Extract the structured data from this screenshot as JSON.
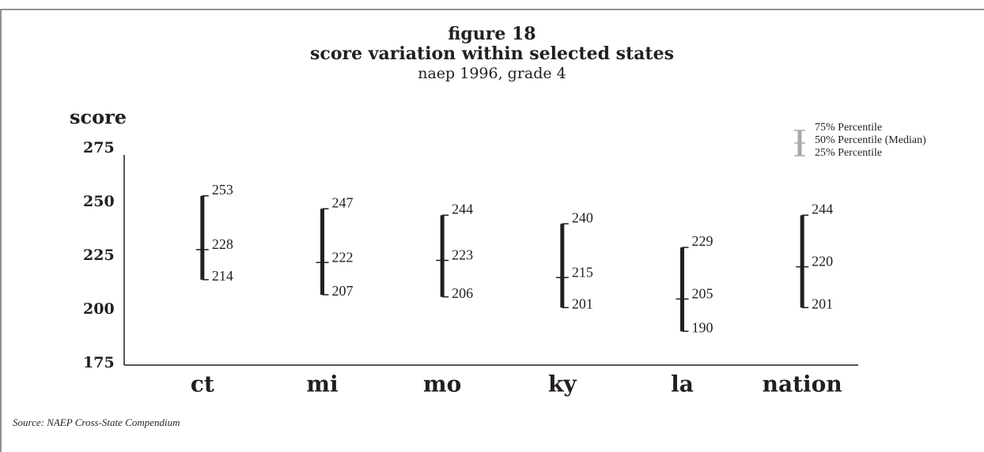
{
  "chart_data": {
    "type": "range_bar",
    "title": "figure 18",
    "subtitle": "score variation within selected states",
    "subtitle2": "naep 1996, grade 4",
    "y_label": "score",
    "source": "Source: NAEP Cross-State Compendium",
    "categories": [
      "ct",
      "mi",
      "mo",
      "ky",
      "la",
      "nation"
    ],
    "color": "#231f20",
    "series": [
      {
        "name": "75% Percentile",
        "values": [
          253,
          247,
          244,
          240,
          229,
          244
        ]
      },
      {
        "name": "50% Percentile (Median)",
        "values": [
          228,
          222,
          223,
          215,
          205,
          220
        ]
      },
      {
        "name": "25% Percentile",
        "values": [
          214,
          207,
          206,
          201,
          190,
          201
        ]
      }
    ],
    "ylim": [
      175,
      275
    ],
    "yticks": [
      175,
      200,
      225,
      250,
      275
    ]
  }
}
